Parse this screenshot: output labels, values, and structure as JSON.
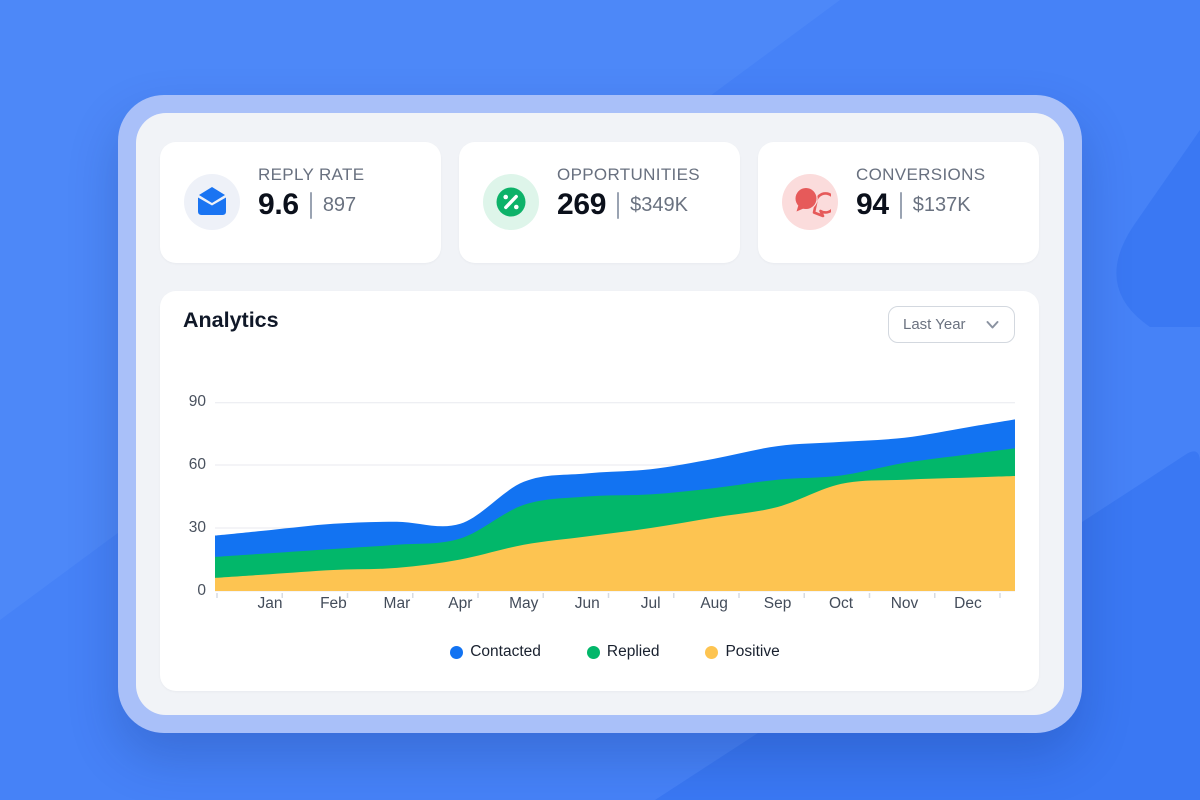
{
  "theme": {
    "bg_base": "#4682f7",
    "bg_shape_dark": "#3a78f3",
    "bg_shape_light": "#4d88f8",
    "frame_border": "#a9c0f9",
    "panel_bg": "#f1f3f7",
    "card_bg": "#ffffff"
  },
  "stats": [
    {
      "label": "REPLY RATE",
      "value": "9.6",
      "secondary": "897",
      "icon": "mail-open-icon",
      "icon_color": "#1a74f2",
      "icon_bg": "#eef1f8"
    },
    {
      "label": "OPPORTUNITIES",
      "value": "269",
      "secondary": "$349K",
      "icon": "percent-icon",
      "icon_color": "#0db269",
      "icon_bg": "#def5ea"
    },
    {
      "label": "CONVERSIONS",
      "value": "94",
      "secondary": "$137K",
      "icon": "chat-bubbles-icon",
      "icon_color": "#e65a5a",
      "icon_bg": "#fbdcdc"
    }
  ],
  "analytics": {
    "title": "Analytics",
    "filter": {
      "label": "Last Year",
      "icon": "chevron-down-icon"
    }
  },
  "chart_data": {
    "type": "area",
    "title": "Analytics",
    "x": [
      "Jan",
      "Feb",
      "Mar",
      "Apr",
      "May",
      "Jun",
      "Jul",
      "Aug",
      "Sep",
      "Oct",
      "Nov",
      "Dec"
    ],
    "series": [
      {
        "name": "Contacted",
        "color": "#1273f2",
        "values": [
          29,
          32,
          33,
          32,
          52,
          56,
          58,
          63,
          69,
          71,
          73,
          78
        ]
      },
      {
        "name": "Replied",
        "color": "#02b76a",
        "values": [
          18,
          20,
          22,
          25,
          41,
          45,
          46,
          49,
          53,
          55,
          61,
          65
        ]
      },
      {
        "name": "Positive",
        "color": "#fdc451",
        "values": [
          8,
          10,
          11,
          15,
          22,
          26,
          30,
          35,
          40,
          51,
          53,
          54
        ]
      }
    ],
    "ylim": [
      0,
      90
    ],
    "yticks": [
      0,
      30,
      60,
      90
    ],
    "mode": "overlay",
    "grid": "horizontal",
    "legend_position": "bottom"
  }
}
